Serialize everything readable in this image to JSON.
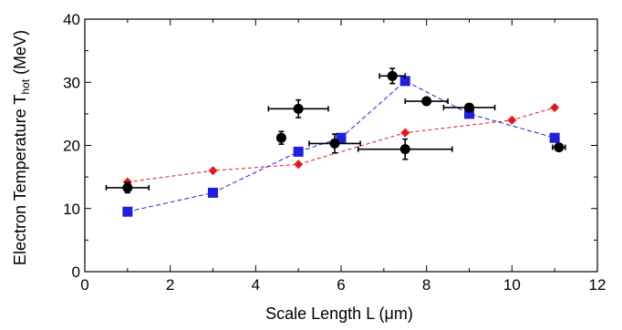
{
  "chart_data": {
    "type": "scatter",
    "xlabel": "Scale Length L (μm)",
    "ylabel_main": "Electron Temperature T",
    "ylabel_sub": "hot",
    "ylabel_unit": " (MeV)",
    "xlim": [
      0,
      12
    ],
    "ylim": [
      0,
      40
    ],
    "x_ticks": [
      "0",
      "2",
      "4",
      "6",
      "8",
      "10",
      "12"
    ],
    "y_ticks": [
      "0",
      "10",
      "20",
      "30",
      "40"
    ],
    "grid": false,
    "series": [
      {
        "marker": "diamond",
        "color": "#e8141b",
        "line": "dashed",
        "x": [
          1,
          3,
          5,
          7.5,
          10,
          11
        ],
        "y": [
          14.2,
          16,
          17,
          22,
          24,
          26
        ]
      },
      {
        "marker": "square",
        "color": "#1f1fe0",
        "line": "dashed",
        "x": [
          1,
          3,
          5,
          6,
          7.5,
          9,
          11
        ],
        "y": [
          9.5,
          12.5,
          19,
          21.2,
          30.2,
          25,
          21.2
        ]
      },
      {
        "marker": "circle",
        "color": "#000000",
        "line": "none",
        "points": [
          {
            "x": 1.0,
            "y": 13.3,
            "xerr": 0.5,
            "yerr": 0.8
          },
          {
            "x": 4.6,
            "y": 21.2,
            "xerr": 0,
            "yerr": 1.0
          },
          {
            "x": 5.0,
            "y": 25.8,
            "xerr": 0.7,
            "yerr": 1.4
          },
          {
            "x": 5.85,
            "y": 20.3,
            "xerr": 0.6,
            "yerr": 1.5
          },
          {
            "x": 7.2,
            "y": 31.0,
            "xerr": 0.3,
            "yerr": 1.2
          },
          {
            "x": 7.5,
            "y": 19.4,
            "xerr": 1.1,
            "yerr": 1.6
          },
          {
            "x": 8.0,
            "y": 27.0,
            "xerr": 0.5,
            "yerr": 0
          },
          {
            "x": 9.0,
            "y": 26.0,
            "xerr": 0.6,
            "yerr": 0
          },
          {
            "x": 11.1,
            "y": 19.7,
            "xerr": 0.15,
            "yerr": 0
          }
        ]
      }
    ]
  }
}
